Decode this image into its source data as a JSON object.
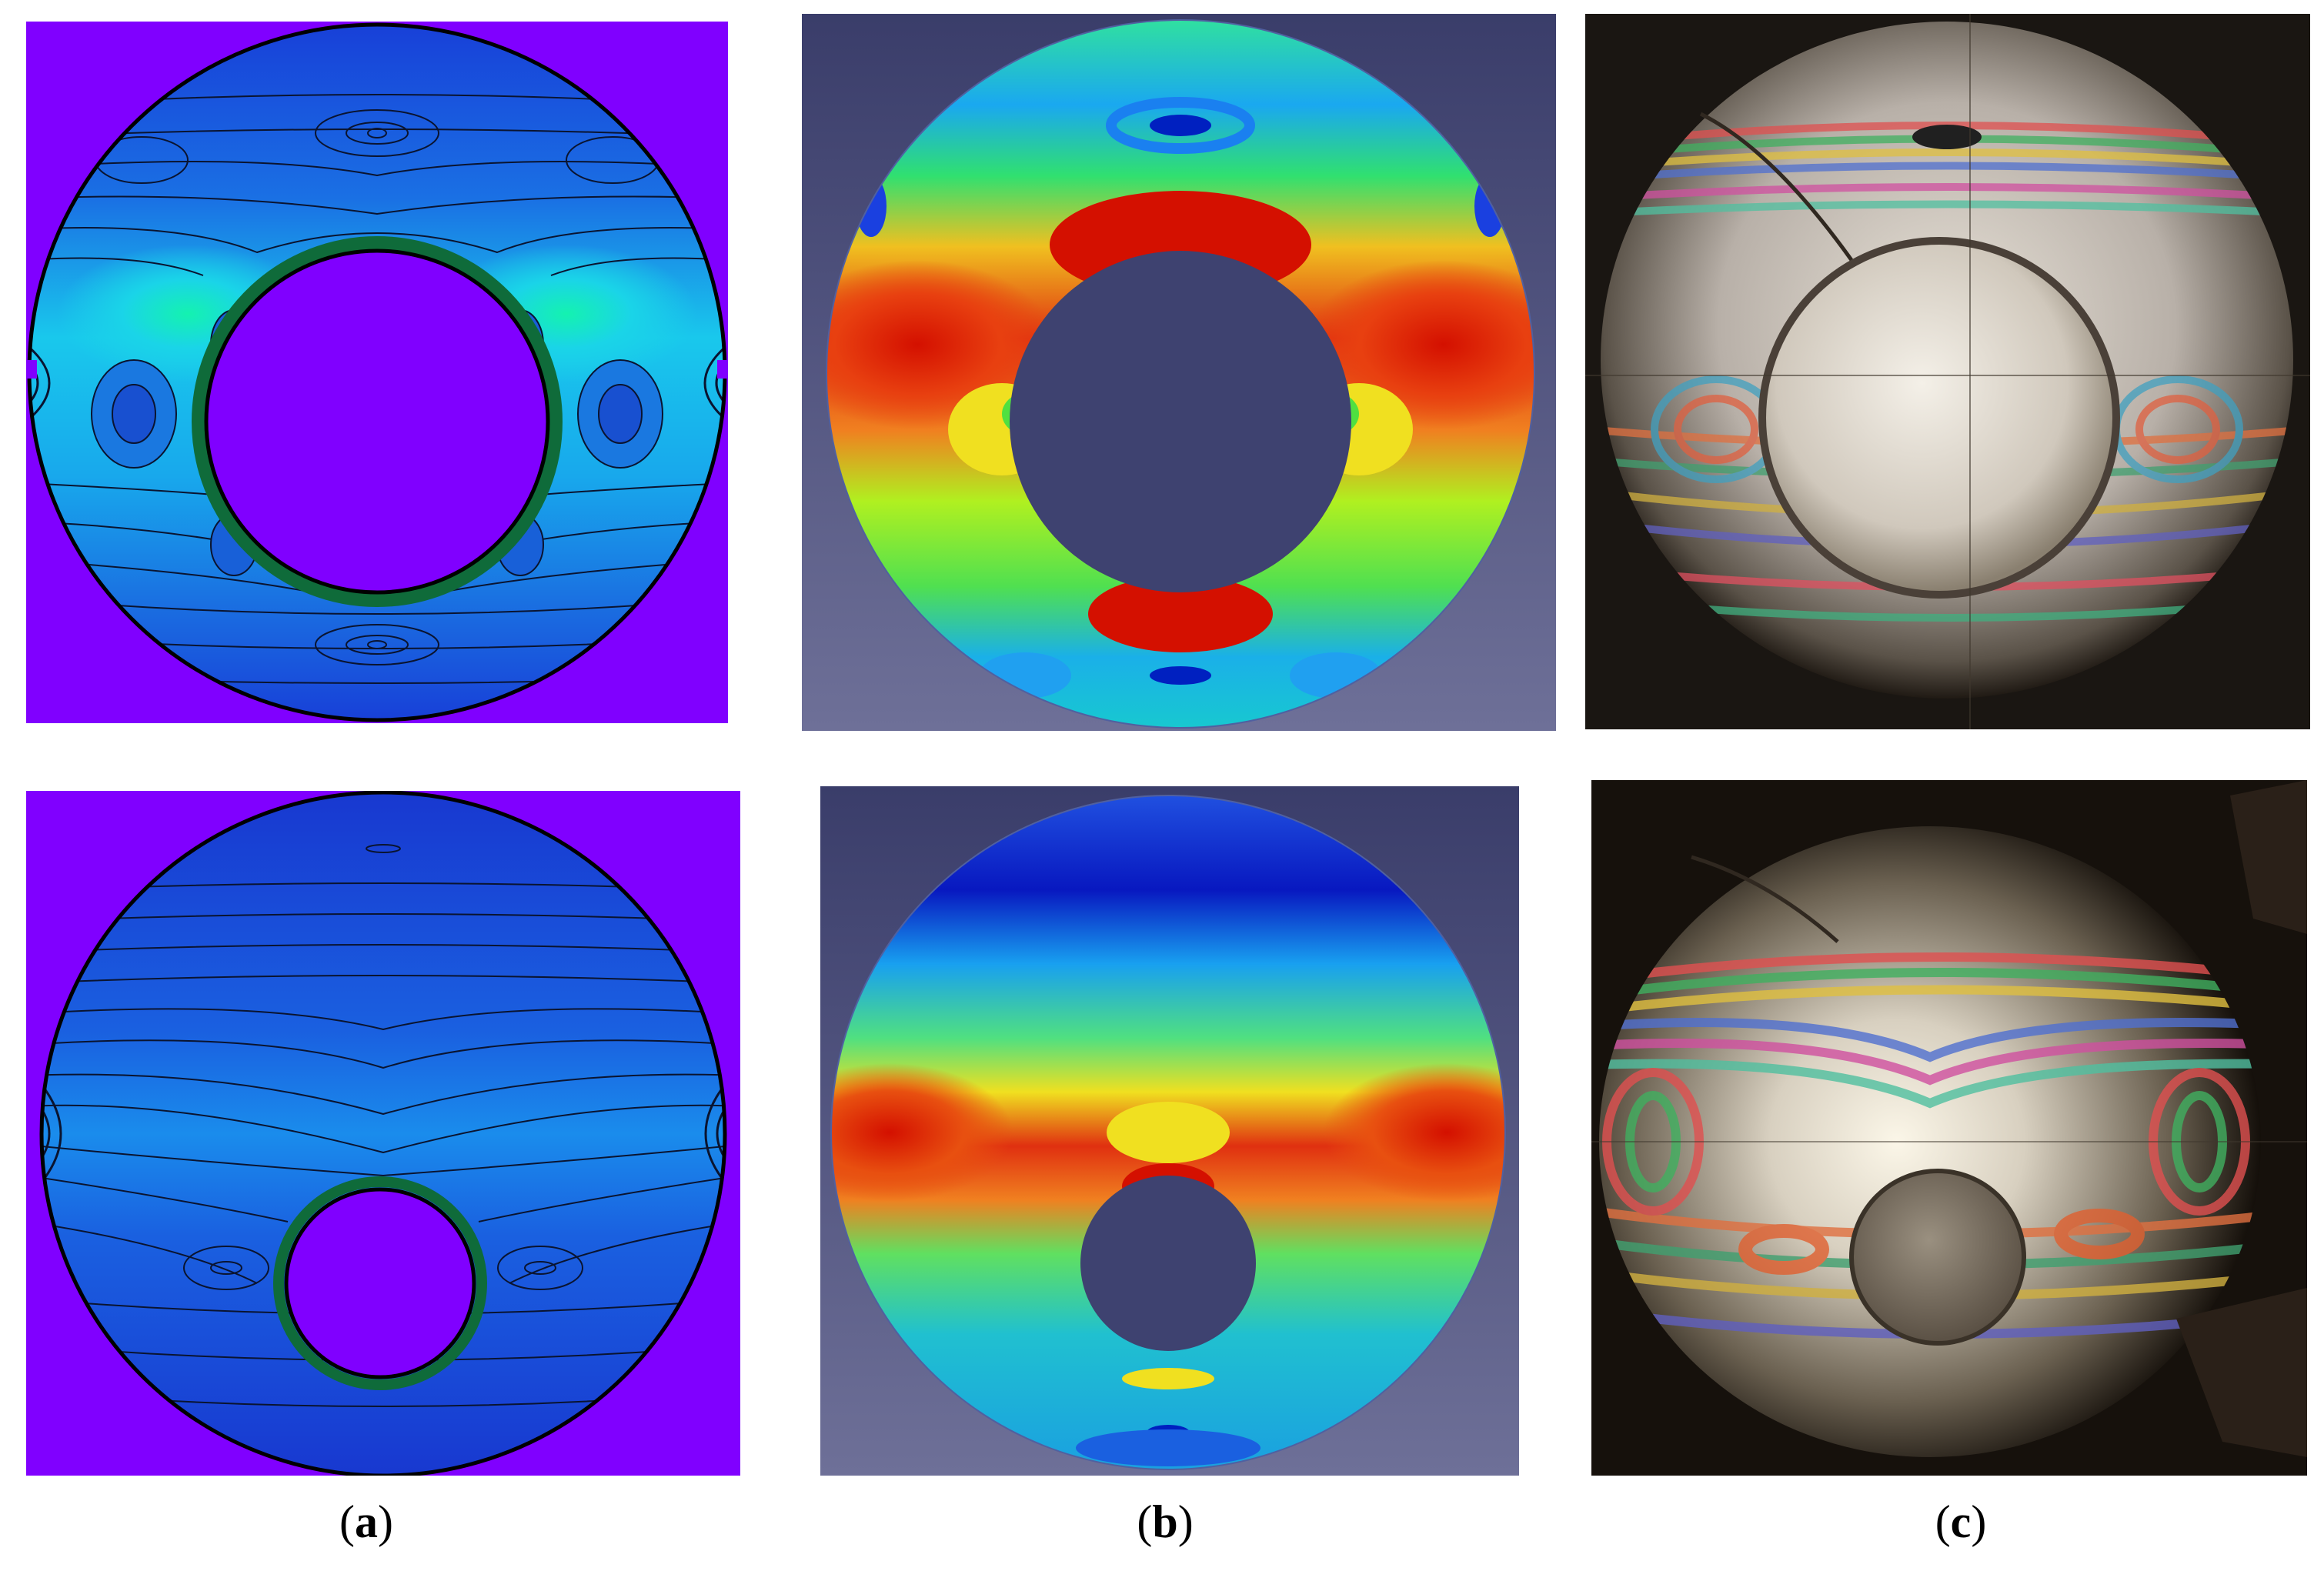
{
  "figure": {
    "captions": [
      {
        "open": "(",
        "letter": "a",
        "close": ")"
      },
      {
        "open": "(",
        "letter": "b",
        "close": ")"
      },
      {
        "open": "(",
        "letter": "c",
        "close": ")"
      }
    ]
  },
  "colors": {
    "contour_background": "#8000ff",
    "contour_disc": "#1a4fd8",
    "fea_background": "#3c4068",
    "fea_hot": "#d41000",
    "photo_background": "#1a1612"
  },
  "panels": [
    {
      "row": 1,
      "column": "a",
      "kind": "contour-plot"
    },
    {
      "row": 1,
      "column": "b",
      "kind": "finite-element-stress-map"
    },
    {
      "row": 1,
      "column": "c",
      "kind": "photoelastic-photograph"
    },
    {
      "row": 2,
      "column": "a",
      "kind": "contour-plot"
    },
    {
      "row": 2,
      "column": "b",
      "kind": "finite-element-stress-map"
    },
    {
      "row": 2,
      "column": "c",
      "kind": "photoelastic-photograph"
    }
  ]
}
